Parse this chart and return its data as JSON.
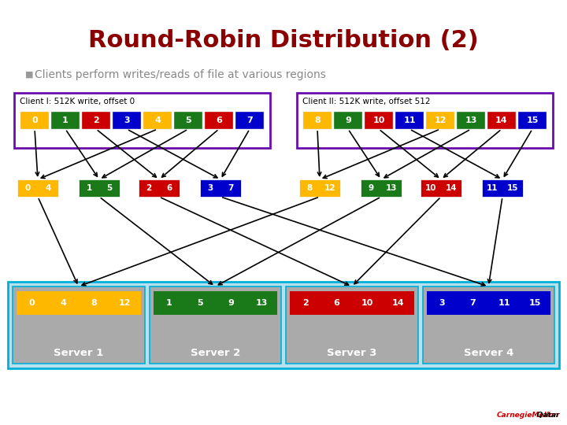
{
  "title": "Round-Robin Distribution (2)",
  "subtitle": "Clients perform writes/reads of file at various regions",
  "title_color": "#8B0000",
  "slide_bg": "#FFFFFF",
  "subtitle_color": "#888888",
  "client_border_color": "#6A0DAD",
  "chunk_colors": [
    "#FFB800",
    "#1A7A1A",
    "#CC0000",
    "#0000CC"
  ],
  "client1_label": "Client I: 512K write, offset 0",
  "client2_label": "Client II: 512K write, offset 512",
  "client1_chunks": [
    "0",
    "1",
    "2",
    "3",
    "4",
    "5",
    "6",
    "7"
  ],
  "client2_chunks": [
    "8",
    "9",
    "10",
    "11",
    "12",
    "13",
    "14",
    "15"
  ],
  "mid_groups": [
    {
      "labels": [
        "0",
        "4"
      ],
      "ci": 0
    },
    {
      "labels": [
        "1",
        "5"
      ],
      "ci": 1
    },
    {
      "labels": [
        "2",
        "6"
      ],
      "ci": 2
    },
    {
      "labels": [
        "3",
        "7"
      ],
      "ci": 3
    },
    {
      "labels": [
        "8",
        "12"
      ],
      "ci": 0
    },
    {
      "labels": [
        "9",
        "13"
      ],
      "ci": 1
    },
    {
      "labels": [
        "10",
        "14"
      ],
      "ci": 2
    },
    {
      "labels": [
        "11",
        "15"
      ],
      "ci": 3
    }
  ],
  "servers": [
    {
      "name": "Server 1",
      "labels": [
        "0",
        "4",
        "8",
        "12"
      ],
      "ci": 0
    },
    {
      "name": "Server 2",
      "labels": [
        "1",
        "5",
        "9",
        "13"
      ],
      "ci": 1
    },
    {
      "name": "Server 3",
      "labels": [
        "2",
        "6",
        "10",
        "14"
      ],
      "ci": 2
    },
    {
      "name": "Server 4",
      "labels": [
        "3",
        "7",
        "11",
        "15"
      ],
      "ci": 3
    }
  ],
  "server_outer_bg": "#B8E0EC",
  "server_outer_border": "#00B0D8",
  "server_inner_bg": "#AAAAAA"
}
